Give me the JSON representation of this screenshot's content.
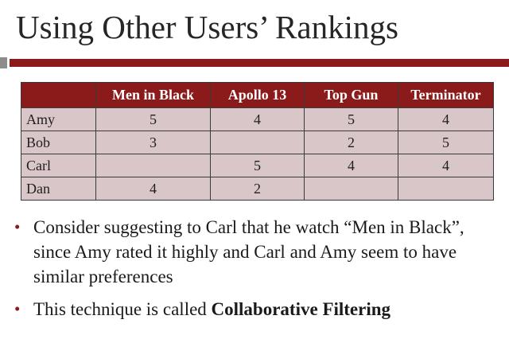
{
  "slide": {
    "title": "Using Other Users’ Rankings"
  },
  "table": {
    "columns": [
      "",
      "Men in Black",
      "Apollo 13",
      "Top Gun",
      "Terminator"
    ],
    "rows": [
      {
        "user": "Amy",
        "ratings": [
          "5",
          "4",
          "5",
          "4"
        ]
      },
      {
        "user": "Bob",
        "ratings": [
          "3",
          "",
          "2",
          "5"
        ]
      },
      {
        "user": "Carl",
        "ratings": [
          "",
          "5",
          "4",
          "4"
        ]
      },
      {
        "user": "Dan",
        "ratings": [
          "4",
          "2",
          "",
          ""
        ]
      }
    ]
  },
  "bullets": [
    {
      "marker": "•",
      "text": "Consider suggesting to Carl that he watch “Men in Black”, since Amy rated it highly and Carl and Amy seem to have similar preferences"
    },
    {
      "marker": "•",
      "text_prefix": "This technique is called ",
      "text_bold": "Collaborative Filtering"
    }
  ],
  "colors": {
    "accent": "#8b1a1a",
    "cell_fill": "#d9c6c8",
    "title_text": "#262626"
  }
}
